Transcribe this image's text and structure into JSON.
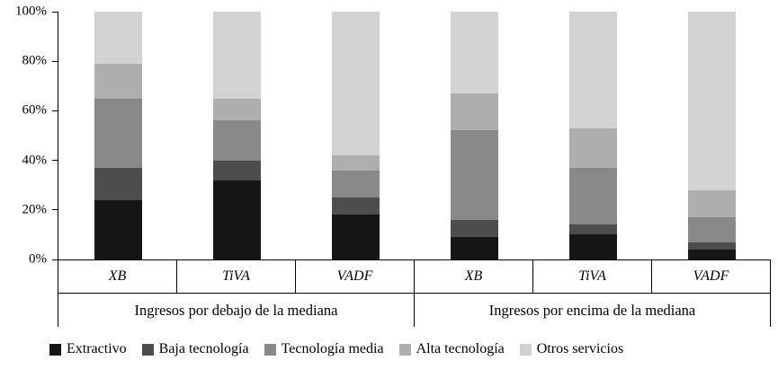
{
  "chart_data": {
    "type": "bar",
    "stacked": true,
    "percent": true,
    "title": "",
    "xlabel": "",
    "ylabel": "",
    "ylim": [
      0,
      100
    ],
    "grid": false,
    "legend_position": "bottom",
    "y_ticks": [
      "100%",
      "80%",
      "60%",
      "40%",
      "20%",
      "0%"
    ],
    "groups": [
      {
        "label": "Ingresos por debajo de la mediana",
        "categories": [
          "XB",
          "TiVA",
          "VADF"
        ]
      },
      {
        "label": "Ingresos por encima de la mediana",
        "categories": [
          "XB",
          "TiVA",
          "VADF"
        ]
      }
    ],
    "series": [
      {
        "name": "Extractivo",
        "color": "#161616",
        "values": [
          24,
          32,
          18,
          9,
          10,
          4
        ]
      },
      {
        "name": "Baja tecnología",
        "color": "#4d4d4d",
        "values": [
          13,
          8,
          7,
          7,
          4,
          3
        ]
      },
      {
        "name": "Tecnología media",
        "color": "#898989",
        "values": [
          28,
          16,
          11,
          36,
          23,
          10
        ]
      },
      {
        "name": "Alta tecnología",
        "color": "#aeaeae",
        "values": [
          14,
          9,
          6,
          15,
          16,
          11
        ]
      },
      {
        "name": "Otros servicios",
        "color": "#d2d2d2",
        "values": [
          21,
          35,
          58,
          33,
          47,
          72
        ]
      }
    ]
  }
}
